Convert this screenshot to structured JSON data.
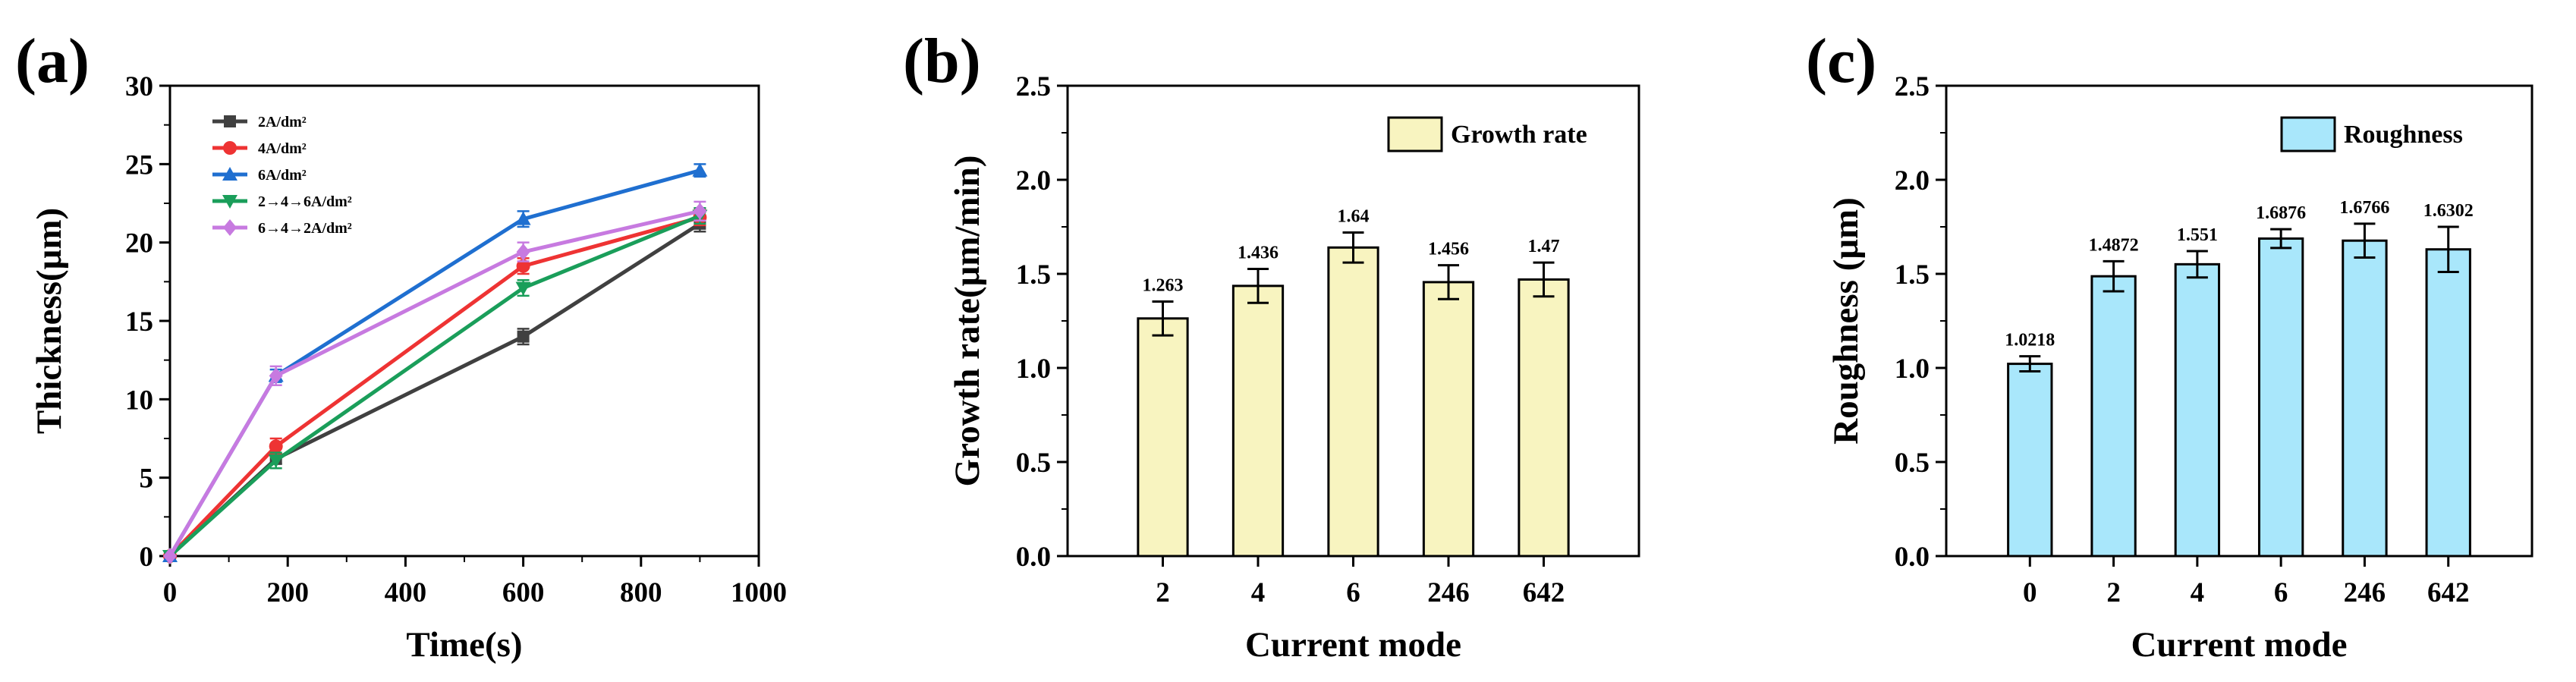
{
  "chart_data": [
    {
      "panel": "(a)",
      "type": "line",
      "xlabel": "Time(s)",
      "ylabel": "Thickness(μm)",
      "xlim": [
        0,
        1000
      ],
      "ylim": [
        0,
        30
      ],
      "xticks": [
        "0",
        "200",
        "400",
        "600",
        "800",
        "1000"
      ],
      "yticks": [
        "0",
        "5",
        "10",
        "15",
        "20",
        "25",
        "30"
      ],
      "x": [
        0,
        180,
        600,
        900
      ],
      "series": [
        {
          "name": "2A/dm²",
          "color": "#404040",
          "marker": "square",
          "values": [
            0,
            6.2,
            14.0,
            21.2
          ],
          "errors": [
            0,
            0.3,
            0.5,
            0.5
          ]
        },
        {
          "name": "4A/dm²",
          "color": "#ee3333",
          "marker": "circle",
          "values": [
            0,
            7.0,
            18.5,
            21.6
          ],
          "errors": [
            0,
            0.5,
            0.5,
            0.5
          ]
        },
        {
          "name": "6A/dm²",
          "color": "#1f6fd0",
          "marker": "triangle-up",
          "values": [
            0,
            11.5,
            21.5,
            24.6
          ],
          "errors": [
            0,
            0.4,
            0.5,
            0.4
          ]
        },
        {
          "name": "2→4→6A/dm²",
          "color": "#1a9e5a",
          "marker": "triangle-down",
          "values": [
            0,
            6.1,
            17.1,
            21.7
          ],
          "errors": [
            0,
            0.5,
            0.5,
            0.5
          ]
        },
        {
          "name": "6→4→2A/dm²",
          "color": "#c77ae0",
          "marker": "diamond",
          "values": [
            0,
            11.5,
            19.4,
            22.0
          ],
          "errors": [
            0,
            0.6,
            0.6,
            0.6
          ]
        }
      ],
      "legend": "top-left"
    },
    {
      "panel": "(b)",
      "type": "bar",
      "xlabel": "Current mode",
      "ylabel": "Growth rate(μm/min)",
      "ylim": [
        0,
        2.5
      ],
      "yticks": [
        "0.0",
        "0.5",
        "1.0",
        "1.5",
        "2.0",
        "2.5"
      ],
      "categories": [
        "2",
        "4",
        "6",
        "246",
        "642"
      ],
      "values": [
        1.263,
        1.436,
        1.64,
        1.456,
        1.47
      ],
      "labels": [
        "1.263",
        "1.436",
        "1.64",
        "1.456",
        "1.47"
      ],
      "errors": [
        0.09,
        0.09,
        0.08,
        0.09,
        0.09
      ],
      "bar_color": "#f8f4c0",
      "legend_entry": "Growth rate",
      "legend": "top-right"
    },
    {
      "panel": "(c)",
      "type": "bar",
      "xlabel": "Current mode",
      "ylabel": "Roughness (μm)",
      "ylim": [
        0,
        2.5
      ],
      "yticks": [
        "0.0",
        "0.5",
        "1.0",
        "1.5",
        "2.0",
        "2.5"
      ],
      "categories": [
        "0",
        "2",
        "4",
        "6",
        "246",
        "642"
      ],
      "values": [
        1.0218,
        1.4872,
        1.551,
        1.6876,
        1.6766,
        1.6302
      ],
      "labels": [
        "1.0218",
        "1.4872",
        "1.551",
        "1.6876",
        "1.6766",
        "1.6302"
      ],
      "errors": [
        0.04,
        0.08,
        0.07,
        0.05,
        0.09,
        0.12
      ],
      "bar_color": "#a9e7fb",
      "legend_entry": "Roughness",
      "legend": "top-right"
    }
  ]
}
